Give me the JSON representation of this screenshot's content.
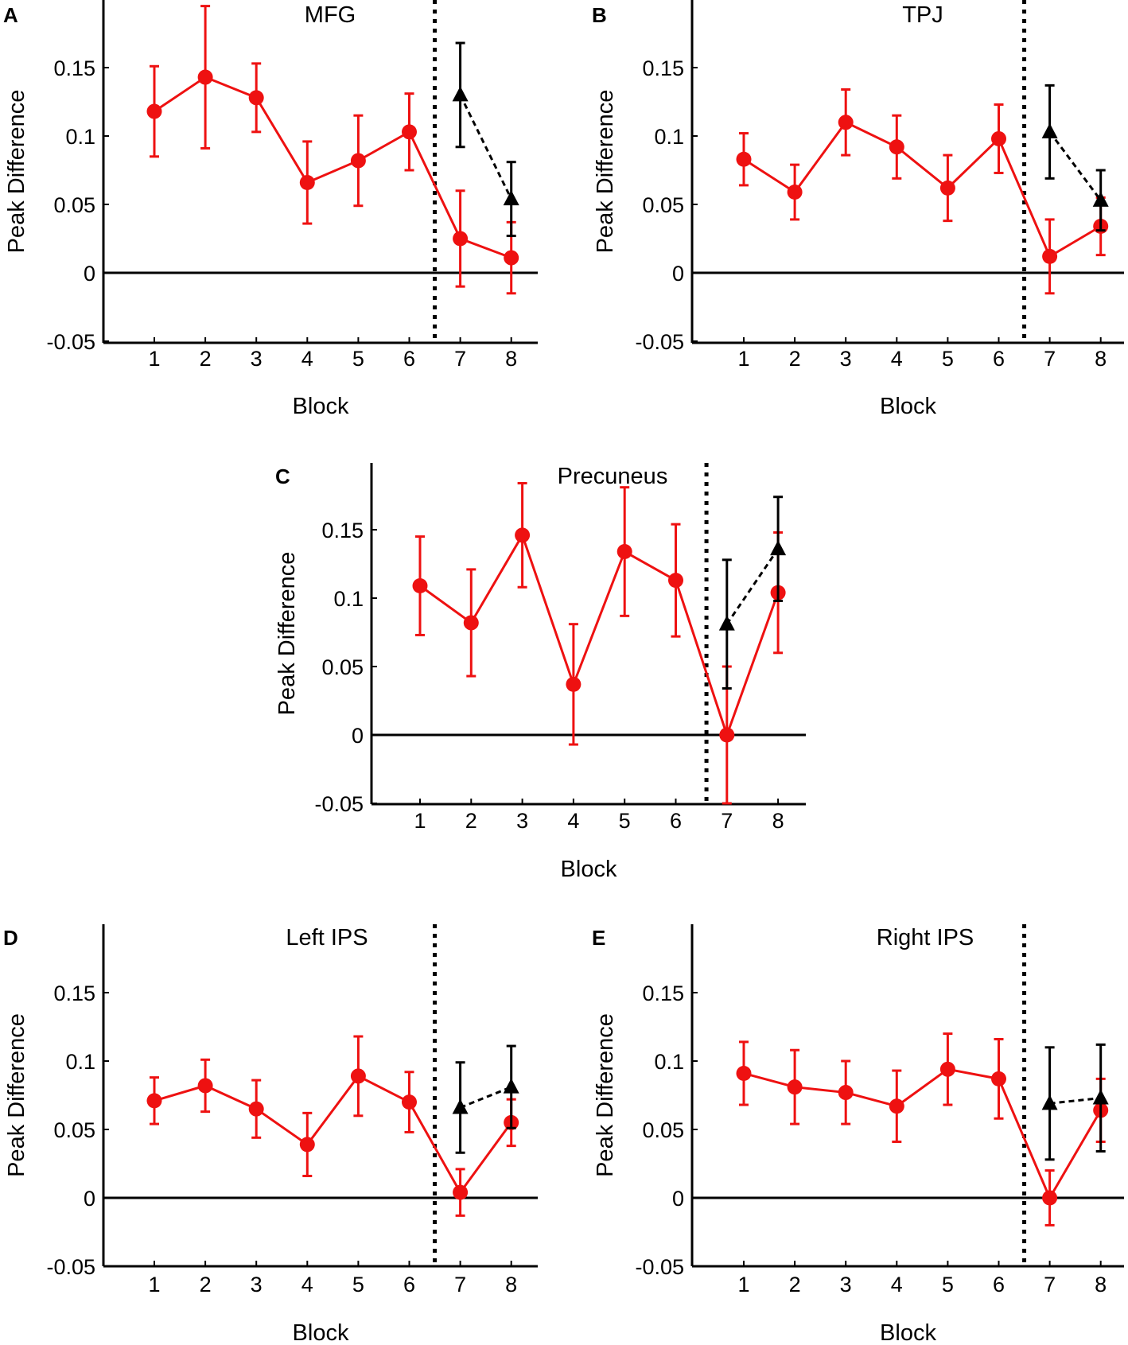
{
  "figure": {
    "xlabel": "Block",
    "ylabel": "Peak Difference"
  },
  "colors": {
    "red_series": "#ee1111",
    "black_series": "#000000",
    "axis": "#000000"
  },
  "chart_data": [
    {
      "panel": "A",
      "title": "MFG",
      "type": "line",
      "xlabel": "Block",
      "ylabel": "Peak Difference",
      "xlim": [
        0,
        8.8
      ],
      "ylim": [
        -0.05,
        0.2
      ],
      "xticks": [
        "1",
        "2",
        "3",
        "4",
        "5",
        "6",
        "7",
        "8"
      ],
      "yticks": [
        "-0.05",
        "0",
        "0.05",
        "0.1",
        "0.15"
      ],
      "divider_x": 6.5,
      "zero_line": true,
      "series": [
        {
          "name": "red",
          "marker": "circle",
          "line": "solid",
          "x": [
            1,
            2,
            3,
            4,
            5,
            6,
            7,
            8
          ],
          "y": [
            0.118,
            0.143,
            0.128,
            0.066,
            0.082,
            0.103,
            0.025,
            0.011
          ],
          "err": [
            0.033,
            0.052,
            0.025,
            0.03,
            0.033,
            0.028,
            0.035,
            0.026
          ]
        },
        {
          "name": "black",
          "marker": "triangle",
          "line": "dashed",
          "x": [
            7,
            8
          ],
          "y": [
            0.13,
            0.054
          ],
          "err": [
            0.038,
            0.027
          ]
        }
      ]
    },
    {
      "panel": "B",
      "title": "TPJ",
      "type": "line",
      "xlabel": "Block",
      "ylabel": "Peak Difference",
      "xlim": [
        0,
        8.8
      ],
      "ylim": [
        -0.05,
        0.2
      ],
      "xticks": [
        "1",
        "2",
        "3",
        "4",
        "5",
        "6",
        "7",
        "8"
      ],
      "yticks": [
        "-0.05",
        "0",
        "0.05",
        "0.1",
        "0.15"
      ],
      "divider_x": 6.5,
      "zero_line": true,
      "series": [
        {
          "name": "red",
          "marker": "circle",
          "line": "solid",
          "x": [
            1,
            2,
            3,
            4,
            5,
            6,
            7,
            8
          ],
          "y": [
            0.083,
            0.059,
            0.11,
            0.092,
            0.062,
            0.098,
            0.012,
            0.034
          ],
          "err": [
            0.019,
            0.02,
            0.024,
            0.023,
            0.024,
            0.025,
            0.027,
            0.021
          ]
        },
        {
          "name": "black",
          "marker": "triangle",
          "line": "dashed",
          "x": [
            7,
            8
          ],
          "y": [
            0.103,
            0.053
          ],
          "err": [
            0.034,
            0.022
          ]
        }
      ]
    },
    {
      "panel": "C",
      "title": "Precuneus",
      "type": "line",
      "xlabel": "Block",
      "ylabel": "Peak Difference",
      "xlim": [
        0,
        8.8
      ],
      "ylim": [
        -0.05,
        0.2
      ],
      "xticks": [
        "1",
        "2",
        "3",
        "4",
        "5",
        "6",
        "7",
        "8"
      ],
      "yticks": [
        "-0.05",
        "0",
        "0.05",
        "0.1",
        "0.15"
      ],
      "divider_x": 6.6,
      "zero_line": true,
      "series": [
        {
          "name": "red",
          "marker": "circle",
          "line": "solid",
          "x": [
            1,
            2,
            3,
            4,
            5,
            6,
            7,
            8
          ],
          "y": [
            0.109,
            0.082,
            0.146,
            0.037,
            0.134,
            0.113,
            0.0,
            0.104
          ],
          "err": [
            0.036,
            0.039,
            0.038,
            0.044,
            0.047,
            0.041,
            0.05,
            0.044
          ]
        },
        {
          "name": "black",
          "marker": "triangle",
          "line": "dashed",
          "x": [
            7,
            8
          ],
          "y": [
            0.081,
            0.136
          ],
          "err": [
            0.047,
            0.038
          ]
        }
      ]
    },
    {
      "panel": "D",
      "title": "Left IPS",
      "type": "line",
      "xlabel": "Block",
      "ylabel": "Peak Difference",
      "xlim": [
        0,
        8.8
      ],
      "ylim": [
        -0.05,
        0.2
      ],
      "xticks": [
        "1",
        "2",
        "3",
        "4",
        "5",
        "6",
        "7",
        "8"
      ],
      "yticks": [
        "-0.05",
        "0",
        "0.05",
        "0.1",
        "0.15"
      ],
      "divider_x": 6.5,
      "zero_line": true,
      "series": [
        {
          "name": "red",
          "marker": "circle",
          "line": "solid",
          "x": [
            1,
            2,
            3,
            4,
            5,
            6,
            7,
            8
          ],
          "y": [
            0.071,
            0.082,
            0.065,
            0.039,
            0.089,
            0.07,
            0.004,
            0.055
          ],
          "err": [
            0.017,
            0.019,
            0.021,
            0.023,
            0.029,
            0.022,
            0.017,
            0.017
          ]
        },
        {
          "name": "black",
          "marker": "triangle",
          "line": "dashed",
          "x": [
            7,
            8
          ],
          "y": [
            0.066,
            0.081
          ],
          "err": [
            0.033,
            0.03
          ]
        }
      ]
    },
    {
      "panel": "E",
      "title": "Right IPS",
      "type": "line",
      "xlabel": "Block",
      "ylabel": "Peak Difference",
      "xlim": [
        0,
        8.8
      ],
      "ylim": [
        -0.05,
        0.2
      ],
      "xticks": [
        "1",
        "2",
        "3",
        "4",
        "5",
        "6",
        "7",
        "8"
      ],
      "yticks": [
        "-0.05",
        "0",
        "0.05",
        "0.1",
        "0.15"
      ],
      "divider_x": 6.5,
      "zero_line": true,
      "series": [
        {
          "name": "red",
          "marker": "circle",
          "line": "solid",
          "x": [
            1,
            2,
            3,
            4,
            5,
            6,
            7,
            8
          ],
          "y": [
            0.091,
            0.081,
            0.077,
            0.067,
            0.094,
            0.087,
            0.0,
            0.064
          ],
          "err": [
            0.023,
            0.027,
            0.023,
            0.026,
            0.026,
            0.029,
            0.02,
            0.023
          ]
        },
        {
          "name": "black",
          "marker": "triangle",
          "line": "dashed",
          "x": [
            7,
            8
          ],
          "y": [
            0.069,
            0.073
          ],
          "err": [
            0.041,
            0.039
          ]
        }
      ]
    }
  ]
}
